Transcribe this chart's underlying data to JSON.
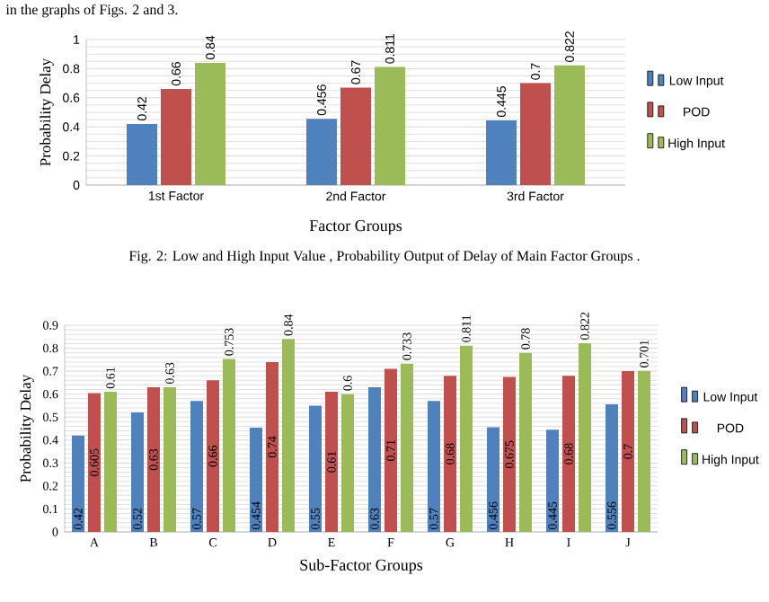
{
  "chart_data": [
    {
      "type": "bar",
      "xlabel": "Factor Groups",
      "ylabel": "Probability Delay",
      "categories": [
        "1st Factor",
        "2nd Factor",
        "3rd Factor"
      ],
      "series": [
        {
          "name": "Low Input",
          "color": "#4f81bd",
          "values": [
            0.42,
            0.456,
            0.445
          ]
        },
        {
          "name": "POD",
          "color": "#c0504d",
          "values": [
            0.66,
            0.67,
            0.7
          ]
        },
        {
          "name": "High Input",
          "color": "#9bbb59",
          "values": [
            0.84,
            0.811,
            0.822
          ]
        }
      ],
      "ylim": [
        0,
        1
      ],
      "yticks": [
        0,
        0.2,
        0.4,
        0.6,
        0.8,
        1
      ],
      "grid": "y",
      "legend": "right",
      "data_labels": true,
      "annotations": [
        "in the graphs of Figs. 2 and 3.",
        "Fig. 2: Low and High Input Value , Probability Output of Delay of Main Factor Groups ."
      ]
    },
    {
      "type": "bar",
      "xlabel": "Sub-Factor Groups",
      "ylabel": "Probability Delay",
      "categories": [
        "A",
        "B",
        "C",
        "D",
        "E",
        "F",
        "G",
        "H",
        "I",
        "J"
      ],
      "series": [
        {
          "name": "Low Input",
          "color": "#4f81bd",
          "values": [
            0.42,
            0.52,
            0.57,
            0.454,
            0.55,
            0.63,
            0.57,
            0.456,
            0.445,
            0.556
          ]
        },
        {
          "name": "POD",
          "color": "#c0504d",
          "values": [
            0.605,
            0.63,
            0.66,
            0.74,
            0.61,
            0.71,
            0.68,
            0.675,
            0.68,
            0.7
          ]
        },
        {
          "name": "High Input",
          "color": "#9bbb59",
          "values": [
            0.61,
            0.63,
            0.753,
            0.84,
            0.6,
            0.733,
            0.811,
            0.78,
            0.822,
            0.701
          ]
        }
      ],
      "ylim": [
        0,
        0.9
      ],
      "yticks": [
        0,
        0.1,
        0.2,
        0.3,
        0.4,
        0.5,
        0.6,
        0.7,
        0.8,
        0.9
      ],
      "grid": "y",
      "legend": "right",
      "data_labels": true
    }
  ]
}
